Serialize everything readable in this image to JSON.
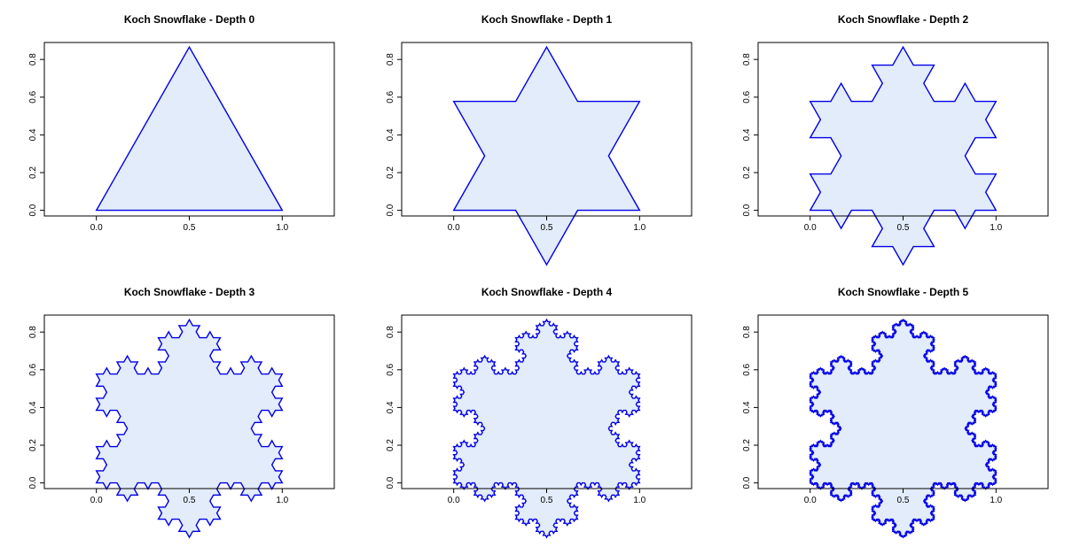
{
  "chart_data": [
    {
      "type": "line",
      "title": "Koch Snowflake - Depth 0",
      "depth": 0,
      "xlim": [
        -0.28,
        1.28
      ],
      "ylim": [
        -0.03,
        0.89
      ],
      "xticks": [
        0.0,
        0.5,
        1.0
      ],
      "xtick_labels": [
        "0.0",
        "0.5",
        "1.0"
      ],
      "yticks": [
        0.0,
        0.2,
        0.4,
        0.6,
        0.8
      ],
      "ytick_labels": [
        "0.0",
        "0.2",
        "0.4",
        "0.6",
        "0.8"
      ],
      "grid": false,
      "legend": "none"
    },
    {
      "type": "line",
      "title": "Koch Snowflake - Depth 1",
      "depth": 1,
      "xlim": [
        -0.28,
        1.28
      ],
      "ylim": [
        -0.03,
        0.89
      ],
      "xticks": [
        0.0,
        0.5,
        1.0
      ],
      "xtick_labels": [
        "0.0",
        "0.5",
        "1.0"
      ],
      "yticks": [
        0.0,
        0.2,
        0.4,
        0.6,
        0.8
      ],
      "ytick_labels": [
        "0.0",
        "0.2",
        "0.4",
        "0.6",
        "0.8"
      ],
      "grid": false,
      "legend": "none"
    },
    {
      "type": "line",
      "title": "Koch Snowflake - Depth 2",
      "depth": 2,
      "xlim": [
        -0.28,
        1.28
      ],
      "ylim": [
        -0.03,
        0.89
      ],
      "xticks": [
        0.0,
        0.5,
        1.0
      ],
      "xtick_labels": [
        "0.0",
        "0.5",
        "1.0"
      ],
      "yticks": [
        0.0,
        0.2,
        0.4,
        0.6,
        0.8
      ],
      "ytick_labels": [
        "0.0",
        "0.2",
        "0.4",
        "0.6",
        "0.8"
      ],
      "grid": false,
      "legend": "none"
    },
    {
      "type": "line",
      "title": "Koch Snowflake - Depth 3",
      "depth": 3,
      "xlim": [
        -0.28,
        1.28
      ],
      "ylim": [
        -0.03,
        0.89
      ],
      "xticks": [
        0.0,
        0.5,
        1.0
      ],
      "xtick_labels": [
        "0.0",
        "0.5",
        "1.0"
      ],
      "yticks": [
        0.0,
        0.2,
        0.4,
        0.6,
        0.8
      ],
      "ytick_labels": [
        "0.0",
        "0.2",
        "0.4",
        "0.6",
        "0.8"
      ],
      "grid": false,
      "legend": "none"
    },
    {
      "type": "line",
      "title": "Koch Snowflake - Depth 4",
      "depth": 4,
      "xlim": [
        -0.28,
        1.28
      ],
      "ylim": [
        -0.03,
        0.89
      ],
      "xticks": [
        0.0,
        0.5,
        1.0
      ],
      "xtick_labels": [
        "0.0",
        "0.5",
        "1.0"
      ],
      "yticks": [
        0.0,
        0.2,
        0.4,
        0.6,
        0.8
      ],
      "ytick_labels": [
        "0.0",
        "0.2",
        "0.4",
        "0.6",
        "0.8"
      ],
      "grid": false,
      "legend": "none"
    },
    {
      "type": "line",
      "title": "Koch Snowflake - Depth 5",
      "depth": 5,
      "xlim": [
        -0.28,
        1.28
      ],
      "ylim": [
        -0.03,
        0.89
      ],
      "xticks": [
        0.0,
        0.5,
        1.0
      ],
      "xtick_labels": [
        "0.0",
        "0.5",
        "1.0"
      ],
      "yticks": [
        0.0,
        0.2,
        0.4,
        0.6,
        0.8
      ],
      "ytick_labels": [
        "0.0",
        "0.2",
        "0.4",
        "0.6",
        "0.8"
      ],
      "grid": false,
      "legend": "none"
    }
  ],
  "colors": {
    "line": "#0000e6",
    "fill": "#e2ecfa",
    "frame": "#000000"
  }
}
